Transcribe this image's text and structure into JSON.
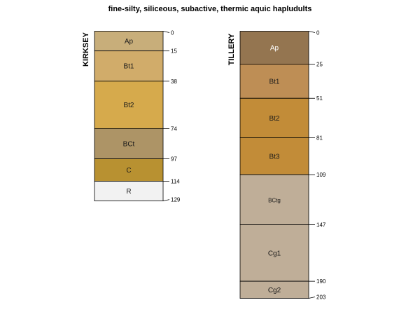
{
  "title": "fine-silty, siliceous, subactive, thermic aquic hapludults",
  "profiles": [
    {
      "name": "KIRKSEY",
      "horizons": [
        {
          "label": "Ap",
          "top": 0,
          "bottom": 15,
          "color": "#C8AE7A",
          "text_color": "#1a1a1a"
        },
        {
          "label": "Bt1",
          "top": 15,
          "bottom": 38,
          "color": "#D1AC6A",
          "text_color": "#1a1a1a"
        },
        {
          "label": "Bt2",
          "top": 38,
          "bottom": 74,
          "color": "#D6AA4C",
          "text_color": "#1a1a1a"
        },
        {
          "label": "BCt",
          "top": 74,
          "bottom": 97,
          "color": "#AD9466",
          "text_color": "#1a1a1a"
        },
        {
          "label": "C",
          "top": 97,
          "bottom": 114,
          "color": "#B89131",
          "text_color": "#1a1a1a"
        },
        {
          "label": "R",
          "top": 114,
          "bottom": 129,
          "color": "#F2F2F2",
          "text_color": "#1a1a1a"
        }
      ],
      "depth_ticks": [
        "0",
        "15",
        "38",
        "74",
        "97",
        "114",
        "129"
      ]
    },
    {
      "name": "TILLERY",
      "horizons": [
        {
          "label": "Ap",
          "top": 0,
          "bottom": 25,
          "color": "#947550",
          "text_color": "#ffffff"
        },
        {
          "label": "Bt1",
          "top": 25,
          "bottom": 51,
          "color": "#BE8E55",
          "text_color": "#1a1a1a"
        },
        {
          "label": "Bt2",
          "top": 51,
          "bottom": 81,
          "color": "#C28C38",
          "text_color": "#1a1a1a"
        },
        {
          "label": "Bt3",
          "top": 81,
          "bottom": 109,
          "color": "#C28C38",
          "text_color": "#1a1a1a"
        },
        {
          "label": "BCtg",
          "top": 109,
          "bottom": 147,
          "color": "#BFAE98",
          "text_color": "#1a1a1a"
        },
        {
          "label": "Cg1",
          "top": 147,
          "bottom": 190,
          "color": "#BFAE98",
          "text_color": "#1a1a1a"
        },
        {
          "label": "Cg2",
          "top": 190,
          "bottom": 203,
          "color": "#BFAE98",
          "text_color": "#1a1a1a"
        }
      ],
      "depth_ticks": [
        "0",
        "25",
        "51",
        "81",
        "109",
        "147",
        "190",
        "203"
      ]
    }
  ]
}
